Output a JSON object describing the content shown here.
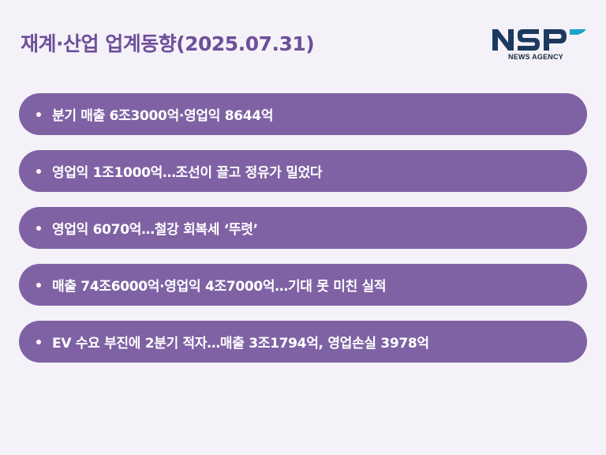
{
  "header": {
    "title": "재계·산업 업계동향(2025.07.31)",
    "logo": {
      "mark": "NSP",
      "subtitle": "NEWS AGENCY",
      "colors": {
        "primary": "#1c3a5e",
        "accent": "#1aa3c8"
      }
    }
  },
  "headlines": [
    "분기 매출 6조3000억·영업익 8644억",
    "영업익 1조1000억…조선이 끌고 정유가 밀었다",
    "영업익 6070억…철강 회복세 ‘뚜렷’",
    "매출 74조6000억·영업익 4조7000억…기대 못 미친 실적",
    "EV 수요 부진에 2분기 적자…매출 3조1794억, 영업손실 3978억"
  ],
  "colors": {
    "background": "#f4f2f8",
    "title": "#6e4f9a",
    "pill": "#7f62a4",
    "pill_text": "#ffffff"
  }
}
